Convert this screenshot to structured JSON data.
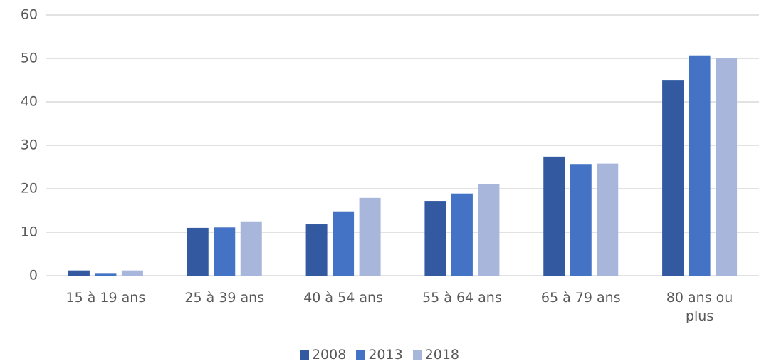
{
  "chart_data": {
    "type": "bar",
    "categories": [
      "15 à 19 ans",
      "25 à 39 ans",
      "40 à 54 ans",
      "55 à 64 ans",
      "65 à 79 ans",
      "80 ans ou plus"
    ],
    "series": [
      {
        "name": "2008",
        "color": "#335aa1",
        "values": [
          1.2,
          11.0,
          11.8,
          17.2,
          27.4,
          44.9
        ]
      },
      {
        "name": "2013",
        "color": "#4472c4",
        "values": [
          0.6,
          11.1,
          14.8,
          18.9,
          25.7,
          50.7
        ]
      },
      {
        "name": "2018",
        "color": "#a9b6dc",
        "values": [
          1.2,
          12.5,
          17.9,
          21.1,
          25.8,
          50.1
        ]
      }
    ],
    "ylim": [
      0,
      60
    ],
    "yticks": [
      0,
      10,
      20,
      30,
      40,
      50,
      60
    ],
    "grid": true
  }
}
